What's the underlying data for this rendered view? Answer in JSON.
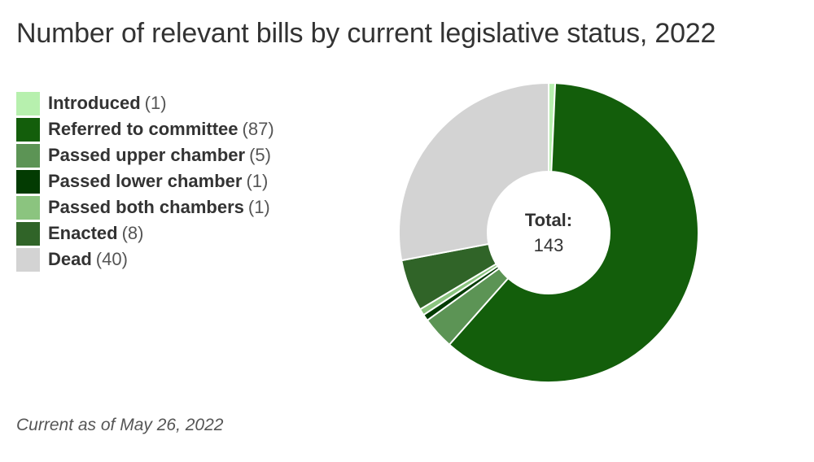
{
  "title": "Number of relevant bills by current legislative status, 2022",
  "footnote": "Current as of May 26, 2022",
  "chart_data": {
    "type": "pie",
    "title": "Number of relevant bills by current legislative status, 2022",
    "legend_position": "left",
    "center": {
      "label": "Total:",
      "value": "143"
    },
    "slices": [
      {
        "name": "Introduced",
        "value": 1,
        "count_label": "(1)",
        "color": "#b7f0ae"
      },
      {
        "name": "Referred to committee",
        "value": 87,
        "count_label": "(87)",
        "color": "#135e0b"
      },
      {
        "name": "Passed upper chamber",
        "value": 5,
        "count_label": "(5)",
        "color": "#5c9455"
      },
      {
        "name": "Passed lower chamber",
        "value": 1,
        "count_label": "(1)",
        "color": "#033b02"
      },
      {
        "name": "Passed both chambers",
        "value": 1,
        "count_label": "(1)",
        "color": "#8bc47f"
      },
      {
        "name": "Enacted",
        "value": 8,
        "count_label": "(8)",
        "color": "#306428"
      },
      {
        "name": "Dead",
        "value": 40,
        "count_label": "(40)",
        "color": "#d3d3d3"
      }
    ]
  }
}
